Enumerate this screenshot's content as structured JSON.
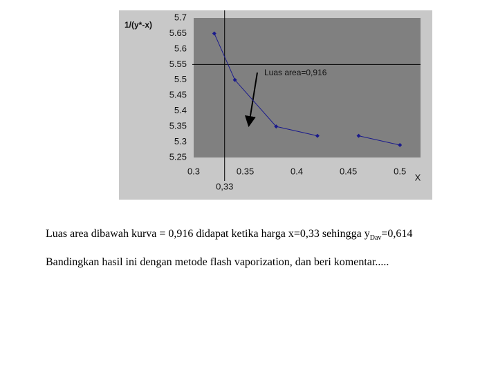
{
  "chart_data": {
    "type": "line",
    "y_axis_label": "1/(y*-x)",
    "x_axis_label": "X",
    "x": [
      0.32,
      0.34,
      0.38,
      0.42,
      0.44,
      0.46,
      0.5
    ],
    "series": [
      {
        "color": "#1a1a8c",
        "values": [
          5.65,
          5.5,
          5.35,
          5.32,
          null,
          5.32,
          5.29
        ]
      }
    ],
    "xlim": [
      0.3,
      0.52
    ],
    "xticks": [
      0.3,
      0.35,
      0.4,
      0.45,
      0.5
    ],
    "ylim": [
      5.25,
      5.7
    ],
    "yticks": [
      5.25,
      5.3,
      5.35,
      5.4,
      5.45,
      5.5,
      5.55,
      5.6,
      5.65,
      5.7
    ],
    "vline": {
      "value": 0.33,
      "label": "0,33"
    },
    "hline": 5.55,
    "annotation": "Luas area=0,916",
    "grid": false
  },
  "text_lines": [
    {
      "main": "Luas area dibawah kurva = 0,916 didapat ketika harga x=0,33 sehingga y",
      "sub": "Dav",
      "after": "=0,614"
    },
    "Bandingkan hasil ini dengan metode flash vaporization, dan beri komentar....."
  ]
}
